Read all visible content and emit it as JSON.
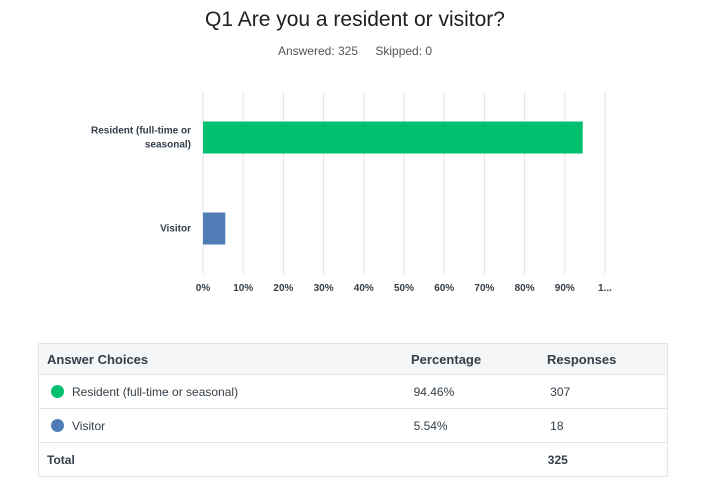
{
  "question": {
    "title": "Q1 Are you a resident or visitor?",
    "answered": "Answered: 325",
    "skipped": "Skipped: 0"
  },
  "chart_data": {
    "type": "bar",
    "orientation": "horizontal",
    "categories": [
      "Resident (full-time or seasonal)",
      "Visitor"
    ],
    "category_lines": [
      [
        "Resident (full-time or",
        "seasonal)"
      ],
      [
        "Visitor"
      ]
    ],
    "values": [
      94.46,
      5.54
    ],
    "colors": [
      "#00bf6f",
      "#507cb6"
    ],
    "xlim": [
      0,
      100
    ],
    "x_ticks": [
      "0%",
      "10%",
      "20%",
      "30%",
      "40%",
      "50%",
      "60%",
      "70%",
      "80%",
      "90%",
      "1..."
    ],
    "grid": true
  },
  "table": {
    "headers": [
      "Answer Choices",
      "Percentage",
      "Responses"
    ],
    "rows": [
      {
        "choice": "Resident (full-time or seasonal)",
        "percentage": "94.46%",
        "responses": "307",
        "color": "#00bf6f"
      },
      {
        "choice": "Visitor",
        "percentage": "5.54%",
        "responses": "18",
        "color": "#507cb6"
      }
    ],
    "total_label": "Total",
    "total_value": "325"
  }
}
